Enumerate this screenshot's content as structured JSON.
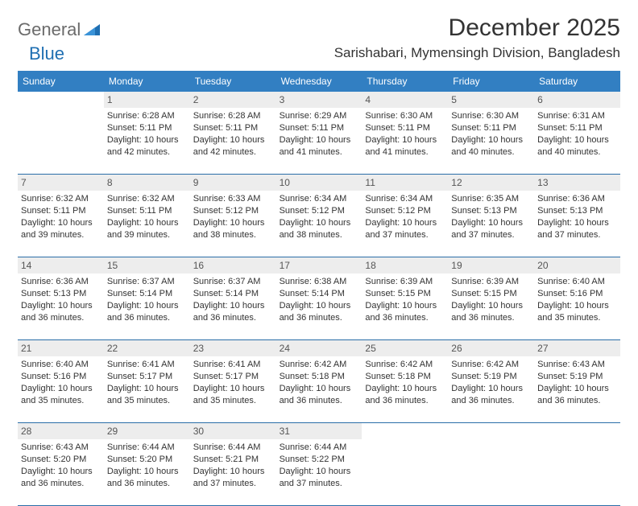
{
  "logo": {
    "word1": "General",
    "word2": "Blue"
  },
  "header": {
    "month_title": "December 2025",
    "location": "Sarishabari, Mymensingh Division, Bangladesh"
  },
  "colors": {
    "header_bg": "#327fc2",
    "header_text": "#ffffff",
    "daynum_bg": "#ededed",
    "row_border": "#2a6ea8",
    "logo_gray": "#6b6b6b",
    "logo_blue": "#1f6fb2"
  },
  "weekdays": [
    "Sunday",
    "Monday",
    "Tuesday",
    "Wednesday",
    "Thursday",
    "Friday",
    "Saturday"
  ],
  "weeks": [
    [
      {
        "n": "",
        "sunrise": "",
        "sunset": "",
        "daylight": ""
      },
      {
        "n": "1",
        "sunrise": "Sunrise: 6:28 AM",
        "sunset": "Sunset: 5:11 PM",
        "daylight": "Daylight: 10 hours and 42 minutes."
      },
      {
        "n": "2",
        "sunrise": "Sunrise: 6:28 AM",
        "sunset": "Sunset: 5:11 PM",
        "daylight": "Daylight: 10 hours and 42 minutes."
      },
      {
        "n": "3",
        "sunrise": "Sunrise: 6:29 AM",
        "sunset": "Sunset: 5:11 PM",
        "daylight": "Daylight: 10 hours and 41 minutes."
      },
      {
        "n": "4",
        "sunrise": "Sunrise: 6:30 AM",
        "sunset": "Sunset: 5:11 PM",
        "daylight": "Daylight: 10 hours and 41 minutes."
      },
      {
        "n": "5",
        "sunrise": "Sunrise: 6:30 AM",
        "sunset": "Sunset: 5:11 PM",
        "daylight": "Daylight: 10 hours and 40 minutes."
      },
      {
        "n": "6",
        "sunrise": "Sunrise: 6:31 AM",
        "sunset": "Sunset: 5:11 PM",
        "daylight": "Daylight: 10 hours and 40 minutes."
      }
    ],
    [
      {
        "n": "7",
        "sunrise": "Sunrise: 6:32 AM",
        "sunset": "Sunset: 5:11 PM",
        "daylight": "Daylight: 10 hours and 39 minutes."
      },
      {
        "n": "8",
        "sunrise": "Sunrise: 6:32 AM",
        "sunset": "Sunset: 5:11 PM",
        "daylight": "Daylight: 10 hours and 39 minutes."
      },
      {
        "n": "9",
        "sunrise": "Sunrise: 6:33 AM",
        "sunset": "Sunset: 5:12 PM",
        "daylight": "Daylight: 10 hours and 38 minutes."
      },
      {
        "n": "10",
        "sunrise": "Sunrise: 6:34 AM",
        "sunset": "Sunset: 5:12 PM",
        "daylight": "Daylight: 10 hours and 38 minutes."
      },
      {
        "n": "11",
        "sunrise": "Sunrise: 6:34 AM",
        "sunset": "Sunset: 5:12 PM",
        "daylight": "Daylight: 10 hours and 37 minutes."
      },
      {
        "n": "12",
        "sunrise": "Sunrise: 6:35 AM",
        "sunset": "Sunset: 5:13 PM",
        "daylight": "Daylight: 10 hours and 37 minutes."
      },
      {
        "n": "13",
        "sunrise": "Sunrise: 6:36 AM",
        "sunset": "Sunset: 5:13 PM",
        "daylight": "Daylight: 10 hours and 37 minutes."
      }
    ],
    [
      {
        "n": "14",
        "sunrise": "Sunrise: 6:36 AM",
        "sunset": "Sunset: 5:13 PM",
        "daylight": "Daylight: 10 hours and 36 minutes."
      },
      {
        "n": "15",
        "sunrise": "Sunrise: 6:37 AM",
        "sunset": "Sunset: 5:14 PM",
        "daylight": "Daylight: 10 hours and 36 minutes."
      },
      {
        "n": "16",
        "sunrise": "Sunrise: 6:37 AM",
        "sunset": "Sunset: 5:14 PM",
        "daylight": "Daylight: 10 hours and 36 minutes."
      },
      {
        "n": "17",
        "sunrise": "Sunrise: 6:38 AM",
        "sunset": "Sunset: 5:14 PM",
        "daylight": "Daylight: 10 hours and 36 minutes."
      },
      {
        "n": "18",
        "sunrise": "Sunrise: 6:39 AM",
        "sunset": "Sunset: 5:15 PM",
        "daylight": "Daylight: 10 hours and 36 minutes."
      },
      {
        "n": "19",
        "sunrise": "Sunrise: 6:39 AM",
        "sunset": "Sunset: 5:15 PM",
        "daylight": "Daylight: 10 hours and 36 minutes."
      },
      {
        "n": "20",
        "sunrise": "Sunrise: 6:40 AM",
        "sunset": "Sunset: 5:16 PM",
        "daylight": "Daylight: 10 hours and 35 minutes."
      }
    ],
    [
      {
        "n": "21",
        "sunrise": "Sunrise: 6:40 AM",
        "sunset": "Sunset: 5:16 PM",
        "daylight": "Daylight: 10 hours and 35 minutes."
      },
      {
        "n": "22",
        "sunrise": "Sunrise: 6:41 AM",
        "sunset": "Sunset: 5:17 PM",
        "daylight": "Daylight: 10 hours and 35 minutes."
      },
      {
        "n": "23",
        "sunrise": "Sunrise: 6:41 AM",
        "sunset": "Sunset: 5:17 PM",
        "daylight": "Daylight: 10 hours and 35 minutes."
      },
      {
        "n": "24",
        "sunrise": "Sunrise: 6:42 AM",
        "sunset": "Sunset: 5:18 PM",
        "daylight": "Daylight: 10 hours and 36 minutes."
      },
      {
        "n": "25",
        "sunrise": "Sunrise: 6:42 AM",
        "sunset": "Sunset: 5:18 PM",
        "daylight": "Daylight: 10 hours and 36 minutes."
      },
      {
        "n": "26",
        "sunrise": "Sunrise: 6:42 AM",
        "sunset": "Sunset: 5:19 PM",
        "daylight": "Daylight: 10 hours and 36 minutes."
      },
      {
        "n": "27",
        "sunrise": "Sunrise: 6:43 AM",
        "sunset": "Sunset: 5:19 PM",
        "daylight": "Daylight: 10 hours and 36 minutes."
      }
    ],
    [
      {
        "n": "28",
        "sunrise": "Sunrise: 6:43 AM",
        "sunset": "Sunset: 5:20 PM",
        "daylight": "Daylight: 10 hours and 36 minutes."
      },
      {
        "n": "29",
        "sunrise": "Sunrise: 6:44 AM",
        "sunset": "Sunset: 5:20 PM",
        "daylight": "Daylight: 10 hours and 36 minutes."
      },
      {
        "n": "30",
        "sunrise": "Sunrise: 6:44 AM",
        "sunset": "Sunset: 5:21 PM",
        "daylight": "Daylight: 10 hours and 37 minutes."
      },
      {
        "n": "31",
        "sunrise": "Sunrise: 6:44 AM",
        "sunset": "Sunset: 5:22 PM",
        "daylight": "Daylight: 10 hours and 37 minutes."
      },
      {
        "n": "",
        "sunrise": "",
        "sunset": "",
        "daylight": ""
      },
      {
        "n": "",
        "sunrise": "",
        "sunset": "",
        "daylight": ""
      },
      {
        "n": "",
        "sunrise": "",
        "sunset": "",
        "daylight": ""
      }
    ]
  ]
}
